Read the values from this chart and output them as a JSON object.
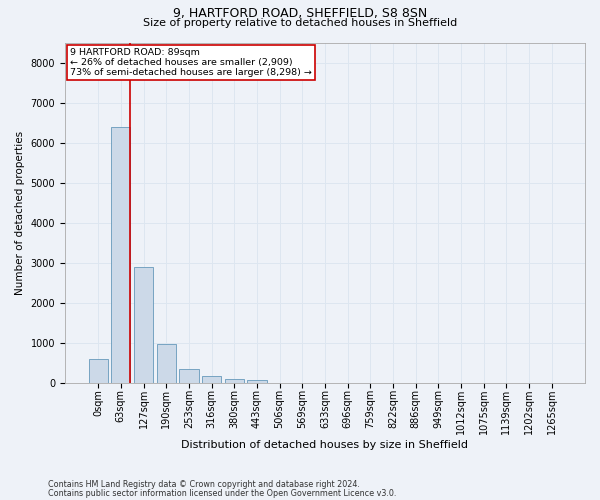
{
  "title1": "9, HARTFORD ROAD, SHEFFIELD, S8 8SN",
  "title2": "Size of property relative to detached houses in Sheffield",
  "xlabel": "Distribution of detached houses by size in Sheffield",
  "ylabel": "Number of detached properties",
  "bar_labels": [
    "0sqm",
    "63sqm",
    "127sqm",
    "190sqm",
    "253sqm",
    "316sqm",
    "380sqm",
    "443sqm",
    "506sqm",
    "569sqm",
    "633sqm",
    "696sqm",
    "759sqm",
    "822sqm",
    "886sqm",
    "949sqm",
    "1012sqm",
    "1075sqm",
    "1139sqm",
    "1202sqm",
    "1265sqm"
  ],
  "bar_values": [
    580,
    6380,
    2900,
    960,
    340,
    155,
    100,
    60,
    0,
    0,
    0,
    0,
    0,
    0,
    0,
    0,
    0,
    0,
    0,
    0,
    0
  ],
  "bar_color": "#ccd9e8",
  "bar_edge_color": "#6699bb",
  "grid_color": "#dde6f0",
  "vline_x": 1.42,
  "annotation_title": "9 HARTFORD ROAD: 89sqm",
  "annotation_line1": "← 26% of detached houses are smaller (2,909)",
  "annotation_line2": "73% of semi-detached houses are larger (8,298) →",
  "annotation_box_color": "#ffffff",
  "annotation_box_edge": "#cc0000",
  "vline_color": "#cc0000",
  "footer1": "Contains HM Land Registry data © Crown copyright and database right 2024.",
  "footer2": "Contains public sector information licensed under the Open Government Licence v3.0.",
  "ylim": [
    0,
    8500
  ],
  "yticks": [
    0,
    1000,
    2000,
    3000,
    4000,
    5000,
    6000,
    7000,
    8000
  ],
  "bg_color": "#eef2f8",
  "title1_fontsize": 9,
  "title2_fontsize": 8,
  "ylabel_fontsize": 7.5,
  "xlabel_fontsize": 8,
  "tick_fontsize": 7,
  "footer_fontsize": 5.8,
  "ann_fontsize": 6.8
}
